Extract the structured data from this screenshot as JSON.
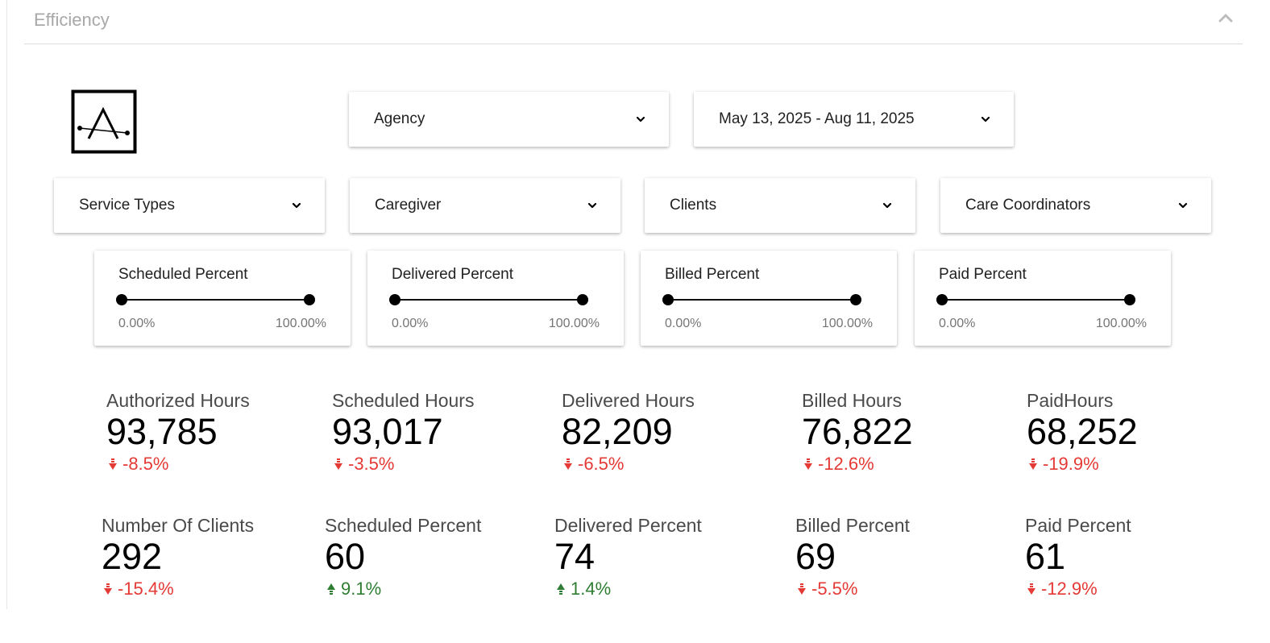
{
  "section": {
    "title": "Efficiency"
  },
  "filters": {
    "agency": "Agency",
    "date_range": "May 13, 2025 - Aug 11, 2025",
    "service_types": "Service Types",
    "caregiver": "Caregiver",
    "clients": "Clients",
    "care_coordinators": "Care Coordinators"
  },
  "sliders": [
    {
      "title": "Scheduled Percent",
      "min": "0.00%",
      "max": "100.00%",
      "range": [
        0,
        100
      ]
    },
    {
      "title": "Delivered Percent",
      "min": "0.00%",
      "max": "100.00%",
      "range": [
        0,
        100
      ]
    },
    {
      "title": "Billed Percent",
      "min": "0.00%",
      "max": "100.00%",
      "range": [
        0,
        100
      ]
    },
    {
      "title": "Paid Percent",
      "min": "0.00%",
      "max": "100.00%",
      "range": [
        0,
        100
      ]
    }
  ],
  "metrics_row1": [
    {
      "label": "Authorized Hours",
      "value": "93,785",
      "delta": "-8.5%",
      "trend": "down"
    },
    {
      "label": "Scheduled Hours",
      "value": "93,017",
      "delta": "-3.5%",
      "trend": "down"
    },
    {
      "label": "Delivered Hours",
      "value": "82,209",
      "delta": "-6.5%",
      "trend": "down"
    },
    {
      "label": "Billed Hours",
      "value": "76,822",
      "delta": "-12.6%",
      "trend": "down"
    },
    {
      "label": "PaidHours",
      "value": "68,252",
      "delta": "-19.9%",
      "trend": "down"
    }
  ],
  "metrics_row2": [
    {
      "label": "Number Of Clients",
      "value": "292",
      "delta": "-15.4%",
      "trend": "down"
    },
    {
      "label": "Scheduled Percent",
      "value": "60",
      "delta": "9.1%",
      "trend": "up"
    },
    {
      "label": "Delivered Percent",
      "value": "74",
      "delta": "1.4%",
      "trend": "up"
    },
    {
      "label": "Billed Percent",
      "value": "69",
      "delta": "-5.5%",
      "trend": "down"
    },
    {
      "label": "Paid Percent",
      "value": "61",
      "delta": "-12.9%",
      "trend": "down"
    }
  ],
  "colors": {
    "down": "#e53935",
    "up": "#2e7d32"
  },
  "icons": {
    "collapse": "chevron-up-icon",
    "dropdown": "chevron-down-icon",
    "trend_down": "arrow-down-icon",
    "trend_up": "arrow-up-icon"
  }
}
